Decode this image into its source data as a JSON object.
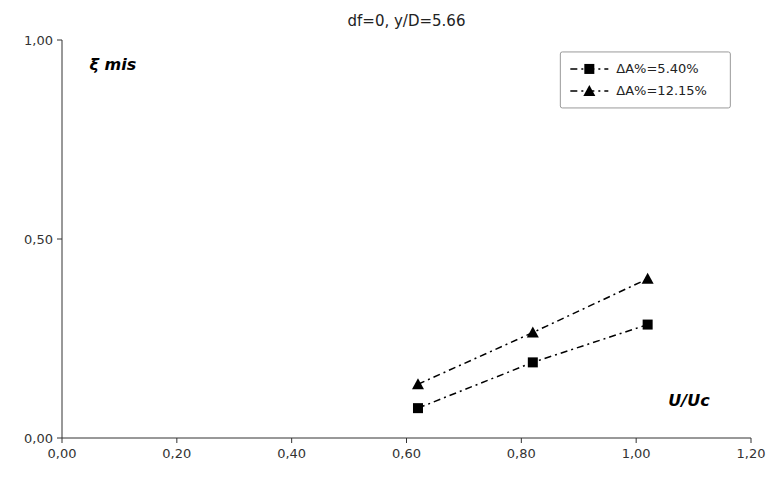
{
  "chart_data": {
    "type": "line",
    "title": "df=0, y/D=5.66",
    "annotations": [
      "ξ mis",
      "U/Uc"
    ],
    "x": [
      0.62,
      0.82,
      1.02
    ],
    "xlim": [
      0.0,
      1.2
    ],
    "ylim": [
      0.0,
      1.0
    ],
    "xticks": [
      {
        "value": 0.0,
        "label": "0,00"
      },
      {
        "value": 0.2,
        "label": "0,20"
      },
      {
        "value": 0.4,
        "label": "0,40"
      },
      {
        "value": 0.6,
        "label": "0,60"
      },
      {
        "value": 0.8,
        "label": "0,80"
      },
      {
        "value": 1.0,
        "label": "1,00"
      },
      {
        "value": 1.2,
        "label": "1,20"
      }
    ],
    "yticks": [
      {
        "value": 0.0,
        "label": "0,00"
      },
      {
        "value": 0.5,
        "label": "0,50"
      },
      {
        "value": 1.0,
        "label": "1,00"
      }
    ],
    "series": [
      {
        "name": "ΔA%=5.40%",
        "color": "#000000",
        "marker": "square",
        "line_style": "dashdot",
        "values": [
          0.075,
          0.19,
          0.285
        ]
      },
      {
        "name": "ΔA%=12.15%",
        "color": "#000000",
        "marker": "triangle",
        "line_style": "dashdot",
        "values": [
          0.135,
          0.265,
          0.4
        ]
      }
    ],
    "legend": "upper right",
    "grid": false
  }
}
